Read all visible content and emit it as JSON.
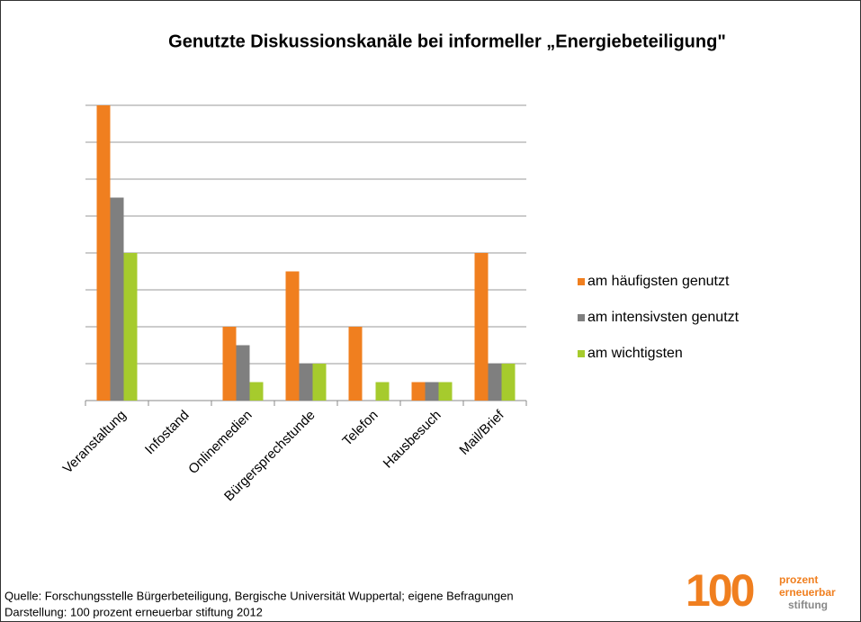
{
  "chart_data": {
    "type": "bar",
    "title": "Genutzte Diskussionskanäle bei informeller „Energiebeteiligung\"",
    "categories": [
      "Veranstaltung",
      "Infostand",
      "Onlinemedien",
      "Bürgersprechstunde",
      "Telefon",
      "Hausbesuch",
      "Mail/Brief"
    ],
    "series": [
      {
        "name": "am häufigsten genutzt",
        "color": "#f07f1f",
        "values": [
          8,
          0,
          2,
          3.5,
          2,
          0.5,
          4
        ]
      },
      {
        "name": "am intensivsten genutzt",
        "color": "#7f7f7f",
        "values": [
          5.5,
          0,
          1.5,
          1,
          0,
          0.5,
          1
        ]
      },
      {
        "name": "am wichtigsten",
        "color": "#a6cb2d",
        "values": [
          4,
          0,
          0.5,
          1,
          0.5,
          0.5,
          1
        ]
      }
    ],
    "ylim": [
      0,
      8
    ],
    "yticks": [
      0,
      1,
      2,
      3,
      4,
      5,
      6,
      7,
      8
    ],
    "grid": true,
    "legend": "right"
  },
  "footer": {
    "source": "Quelle: Forschungsstelle Bürgerbeteiligung, Bergische Universität Wuppertal; eigene Befragungen",
    "credit": "Darstellung: 100 prozent erneuerbar stiftung 2012"
  },
  "logo": {
    "number": "100",
    "line1": "prozent",
    "line2": "erneuerbar",
    "line3": "stiftung"
  }
}
